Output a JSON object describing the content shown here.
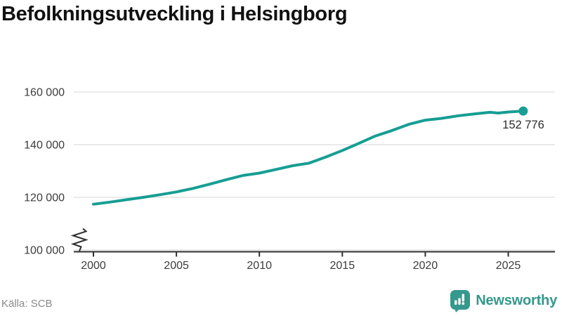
{
  "title": "Befolkningsutveckling i Helsingborg",
  "footer": {
    "source": "Källa: SCB",
    "brand_name": "Newsworthy"
  },
  "colors": {
    "line": "#169E93",
    "grid": "#e4e4e4",
    "axis": "#2f2f2f",
    "tick_text": "#3c3c3c",
    "annotation_text": "#2b2b2b",
    "source_text": "#8a8a8a",
    "brand_teal": "#35988C"
  },
  "chart_data": {
    "type": "line",
    "title": "Befolkningsutveckling i Helsingborg",
    "xlabel": "",
    "ylabel": "",
    "grid": "horizontal",
    "legend": "none",
    "axis_break_at_bottom": true,
    "xlim": [
      1998.8,
      2027.8
    ],
    "ylim": [
      100000,
      160000
    ],
    "x_ticks": {
      "values": [
        2000,
        2005,
        2010,
        2015,
        2020,
        2025
      ],
      "labels": [
        "2000",
        "2005",
        "2010",
        "2015",
        "2020",
        "2025"
      ]
    },
    "y_ticks": {
      "values": [
        100000,
        120000,
        140000,
        160000
      ],
      "labels": [
        "100 000",
        "120 000",
        "140 000",
        "160 000"
      ]
    },
    "end_label": "152 776",
    "series": [
      {
        "color": "#169E93",
        "x": [
          2000,
          2001,
          2002,
          2003,
          2004,
          2005,
          2006,
          2007,
          2008,
          2009,
          2010,
          2011,
          2012,
          2013,
          2014,
          2015,
          2016,
          2017,
          2018,
          2019,
          2020,
          2021,
          2022,
          2023,
          2023.9,
          2024.4,
          2025,
          2025.9
        ],
        "values": [
          117400,
          118200,
          119100,
          120000,
          121000,
          122050,
          123400,
          125000,
          126700,
          128300,
          129200,
          130600,
          132000,
          133000,
          135300,
          137800,
          140500,
          143300,
          145400,
          147700,
          149300,
          150000,
          151000,
          151700,
          152300,
          152000,
          152400,
          152776
        ]
      }
    ]
  }
}
